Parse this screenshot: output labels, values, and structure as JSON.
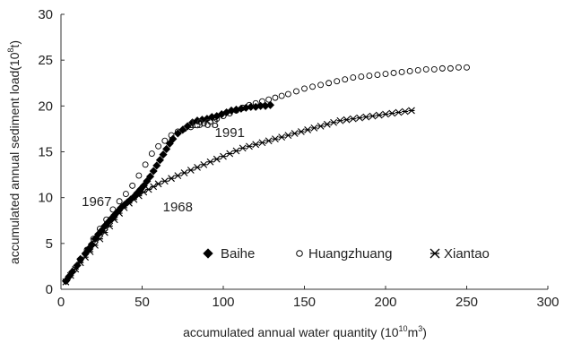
{
  "chart_data": {
    "type": "scatter",
    "xlabel": "accumulated annual water quantity (10",
    "xlabel_sup": "10",
    "xlabel_tail": "m",
    "xlabel_sup2": "3",
    "xlabel_close": ")",
    "ylabel": "accumulated annual sediment load(10",
    "ylabel_sup": "8",
    "ylabel_close": "t)",
    "xlim": [
      0,
      300
    ],
    "ylim": [
      0,
      30
    ],
    "xticks": [
      "0",
      "50",
      "100",
      "150",
      "200",
      "250",
      "300"
    ],
    "yticks": [
      "0",
      "5",
      "10",
      "15",
      "20",
      "25",
      "30"
    ],
    "grid": false,
    "legend_position": "bottom-right",
    "annotations": [
      {
        "text": "1968",
        "x": 88,
        "y": 17.6
      },
      {
        "text": "1991",
        "x": 104,
        "y": 16.6
      },
      {
        "text": "1967",
        "x": 22,
        "y": 9.1
      },
      {
        "text": "1968",
        "x": 72,
        "y": 8.5
      }
    ],
    "series": [
      {
        "name": "Baihe",
        "marker": "diamond",
        "color": "#000000",
        "points": [
          [
            3,
            0.9
          ],
          [
            5,
            1.4
          ],
          [
            7,
            1.9
          ],
          [
            10,
            2.6
          ],
          [
            12,
            3.3
          ],
          [
            15,
            3.9
          ],
          [
            17,
            4.4
          ],
          [
            19,
            4.9
          ],
          [
            21,
            5.5
          ],
          [
            23,
            6.0
          ],
          [
            25,
            6.4
          ],
          [
            27,
            6.9
          ],
          [
            29,
            7.3
          ],
          [
            31,
            7.7
          ],
          [
            33,
            8.1
          ],
          [
            35,
            8.5
          ],
          [
            37,
            8.9
          ],
          [
            39,
            9.2
          ],
          [
            41,
            9.5
          ],
          [
            43,
            9.8
          ],
          [
            45,
            10.1
          ],
          [
            47,
            10.5
          ],
          [
            49,
            10.9
          ],
          [
            51,
            11.3
          ],
          [
            53,
            11.8
          ],
          [
            55,
            12.3
          ],
          [
            57,
            12.9
          ],
          [
            59,
            13.5
          ],
          [
            61,
            14.1
          ],
          [
            63,
            14.7
          ],
          [
            65,
            15.3
          ],
          [
            67,
            15.9
          ],
          [
            69,
            16.4
          ],
          [
            72,
            17.0
          ],
          [
            75,
            17.4
          ],
          [
            78,
            17.8
          ],
          [
            81,
            18.2
          ],
          [
            84,
            18.4
          ],
          [
            87,
            18.5
          ],
          [
            90,
            18.6
          ],
          [
            93,
            18.8
          ],
          [
            96,
            18.9
          ],
          [
            99,
            19.1
          ],
          [
            102,
            19.3
          ],
          [
            105,
            19.5
          ],
          [
            108,
            19.6
          ],
          [
            111,
            19.7
          ],
          [
            114,
            19.8
          ],
          [
            117,
            19.9
          ],
          [
            120,
            19.9
          ],
          [
            123,
            20.0
          ],
          [
            126,
            20.0
          ],
          [
            129,
            20.1
          ]
        ]
      },
      {
        "name": "Huangzhuang",
        "marker": "circle",
        "color": "#000000",
        "points": [
          [
            4,
            1.1
          ],
          [
            8,
            2.1
          ],
          [
            12,
            3.2
          ],
          [
            16,
            4.3
          ],
          [
            20,
            5.5
          ],
          [
            24,
            6.6
          ],
          [
            28,
            7.6
          ],
          [
            32,
            8.7
          ],
          [
            36,
            9.6
          ],
          [
            40,
            10.4
          ],
          [
            44,
            11.3
          ],
          [
            48,
            12.4
          ],
          [
            52,
            13.6
          ],
          [
            56,
            14.8
          ],
          [
            60,
            15.6
          ],
          [
            64,
            16.2
          ],
          [
            68,
            16.8
          ],
          [
            72,
            17.2
          ],
          [
            76,
            17.5
          ],
          [
            80,
            17.7
          ],
          [
            84,
            17.9
          ],
          [
            88,
            18.1
          ],
          [
            92,
            18.3
          ],
          [
            96,
            18.6
          ],
          [
            100,
            18.9
          ],
          [
            104,
            19.2
          ],
          [
            108,
            19.5
          ],
          [
            112,
            19.8
          ],
          [
            116,
            20.1
          ],
          [
            120,
            20.3
          ],
          [
            124,
            20.5
          ],
          [
            128,
            20.7
          ],
          [
            132,
            20.9
          ],
          [
            136,
            21.1
          ],
          [
            140,
            21.3
          ],
          [
            145,
            21.6
          ],
          [
            150,
            21.9
          ],
          [
            155,
            22.1
          ],
          [
            160,
            22.3
          ],
          [
            165,
            22.5
          ],
          [
            170,
            22.7
          ],
          [
            175,
            22.9
          ],
          [
            180,
            23.1
          ],
          [
            185,
            23.2
          ],
          [
            190,
            23.3
          ],
          [
            195,
            23.4
          ],
          [
            200,
            23.5
          ],
          [
            205,
            23.6
          ],
          [
            210,
            23.7
          ],
          [
            215,
            23.8
          ],
          [
            220,
            23.9
          ],
          [
            225,
            24.0
          ],
          [
            230,
            24.0
          ],
          [
            235,
            24.1
          ],
          [
            240,
            24.1
          ],
          [
            245,
            24.2
          ],
          [
            250,
            24.2
          ]
        ]
      },
      {
        "name": "Xiantao",
        "marker": "star",
        "color": "#000000",
        "points": [
          [
            3,
            0.8
          ],
          [
            6,
            1.5
          ],
          [
            9,
            2.2
          ],
          [
            12,
            2.9
          ],
          [
            15,
            3.5
          ],
          [
            18,
            4.1
          ],
          [
            21,
            4.8
          ],
          [
            24,
            5.5
          ],
          [
            27,
            6.2
          ],
          [
            30,
            6.9
          ],
          [
            33,
            7.6
          ],
          [
            36,
            8.3
          ],
          [
            39,
            8.9
          ],
          [
            42,
            9.4
          ],
          [
            45,
            9.8
          ],
          [
            48,
            10.2
          ],
          [
            51,
            10.6
          ],
          [
            54,
            10.9
          ],
          [
            57,
            11.2
          ],
          [
            60,
            11.5
          ],
          [
            64,
            11.8
          ],
          [
            68,
            12.1
          ],
          [
            72,
            12.4
          ],
          [
            76,
            12.7
          ],
          [
            80,
            13.0
          ],
          [
            84,
            13.3
          ],
          [
            88,
            13.6
          ],
          [
            92,
            13.9
          ],
          [
            96,
            14.2
          ],
          [
            100,
            14.5
          ],
          [
            104,
            14.8
          ],
          [
            108,
            15.1
          ],
          [
            112,
            15.4
          ],
          [
            116,
            15.6
          ],
          [
            120,
            15.8
          ],
          [
            124,
            16.0
          ],
          [
            128,
            16.2
          ],
          [
            132,
            16.4
          ],
          [
            136,
            16.6
          ],
          [
            140,
            16.8
          ],
          [
            144,
            17.0
          ],
          [
            148,
            17.2
          ],
          [
            152,
            17.4
          ],
          [
            156,
            17.6
          ],
          [
            160,
            17.8
          ],
          [
            164,
            18.0
          ],
          [
            168,
            18.2
          ],
          [
            172,
            18.4
          ],
          [
            176,
            18.5
          ],
          [
            180,
            18.6
          ],
          [
            184,
            18.7
          ],
          [
            188,
            18.8
          ],
          [
            192,
            18.9
          ],
          [
            196,
            19.0
          ],
          [
            200,
            19.1
          ],
          [
            204,
            19.2
          ],
          [
            208,
            19.3
          ],
          [
            212,
            19.4
          ],
          [
            216,
            19.5
          ]
        ]
      }
    ]
  }
}
